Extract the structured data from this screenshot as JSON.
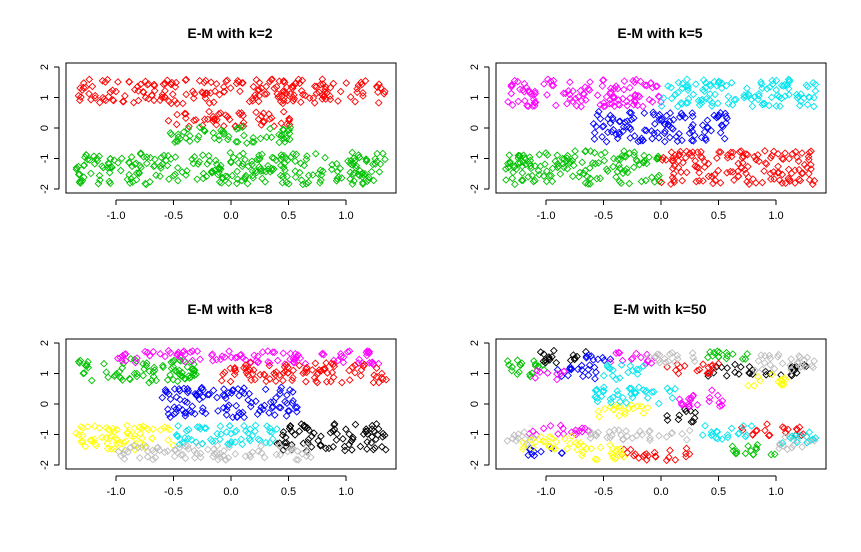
{
  "chart_data": [
    {
      "type": "scatter",
      "title": "E-M with k=2",
      "xlabel": "",
      "ylabel": "",
      "xlim": [
        -1.4,
        1.4
      ],
      "ylim": [
        -2,
        2
      ],
      "xticks": [
        "-1.0",
        "-0.5",
        "0.0",
        "0.5",
        "1.0"
      ],
      "xtick_values": [
        -1.0,
        -0.5,
        0.0,
        0.5,
        1.0
      ],
      "yticks": [
        "-2",
        "-1",
        "0",
        "1",
        "2"
      ],
      "ytick_values": [
        -2,
        -1,
        0,
        1,
        2
      ],
      "marker": "open-diamond",
      "clusters": [
        {
          "color": "#ff0000",
          "regions": [
            {
              "x": [
                -1.35,
                1.35
              ],
              "y": [
                0.8,
                1.6
              ]
            },
            {
              "x": [
                -0.55,
                0.55
              ],
              "y": [
                0.05,
                0.55
              ]
            }
          ]
        },
        {
          "color": "#00c000",
          "regions": [
            {
              "x": [
                -1.35,
                1.35
              ],
              "y": [
                -1.85,
                -0.8
              ]
            },
            {
              "x": [
                -0.55,
                0.55
              ],
              "y": [
                -0.5,
                0.05
              ]
            }
          ]
        }
      ]
    },
    {
      "type": "scatter",
      "title": "E-M with k=5",
      "xlabel": "",
      "ylabel": "",
      "xlim": [
        -1.4,
        1.4
      ],
      "ylim": [
        -2,
        2
      ],
      "xticks": [
        "-1.0",
        "-0.5",
        "0.0",
        "0.5",
        "1.0"
      ],
      "xtick_values": [
        -1.0,
        -0.5,
        0.0,
        0.5,
        1.0
      ],
      "yticks": [
        "-2",
        "-1",
        "0",
        "1",
        "2"
      ],
      "ytick_values": [
        -2,
        -1,
        0,
        1,
        2
      ],
      "marker": "open-diamond",
      "clusters": [
        {
          "color": "#ff00ff",
          "regions": [
            {
              "x": [
                -1.35,
                0.0
              ],
              "y": [
                0.7,
                1.6
              ]
            }
          ]
        },
        {
          "color": "#00e5ee",
          "regions": [
            {
              "x": [
                0.0,
                1.35
              ],
              "y": [
                0.7,
                1.6
              ]
            }
          ]
        },
        {
          "color": "#0000ff",
          "regions": [
            {
              "x": [
                -0.6,
                0.6
              ],
              "y": [
                -0.45,
                0.55
              ]
            }
          ]
        },
        {
          "color": "#00c000",
          "regions": [
            {
              "x": [
                -1.35,
                0.0
              ],
              "y": [
                -1.85,
                -0.75
              ]
            }
          ]
        },
        {
          "color": "#ff0000",
          "regions": [
            {
              "x": [
                0.0,
                1.35
              ],
              "y": [
                -1.85,
                -0.75
              ]
            }
          ]
        }
      ]
    },
    {
      "type": "scatter",
      "title": "E-M with k=8",
      "xlabel": "",
      "ylabel": "",
      "xlim": [
        -1.4,
        1.4
      ],
      "ylim": [
        -2,
        2
      ],
      "xticks": [
        "-1.0",
        "-0.5",
        "0.0",
        "0.5",
        "1.0"
      ],
      "xtick_values": [
        -1.0,
        -0.5,
        0.0,
        0.5,
        1.0
      ],
      "yticks": [
        "-2",
        "-1",
        "0",
        "1",
        "2"
      ],
      "ytick_values": [
        -2,
        -1,
        0,
        1,
        2
      ],
      "marker": "open-diamond",
      "clusters": [
        {
          "color": "#00c000",
          "regions": [
            {
              "x": [
                -1.35,
                -0.3
              ],
              "y": [
                0.7,
                1.5
              ]
            }
          ]
        },
        {
          "color": "#ff00ff",
          "regions": [
            {
              "x": [
                -1.0,
                1.3
              ],
              "y": [
                1.3,
                1.75
              ]
            }
          ]
        },
        {
          "color": "#ff0000",
          "regions": [
            {
              "x": [
                -0.1,
                1.35
              ],
              "y": [
                0.7,
                1.35
              ]
            }
          ]
        },
        {
          "color": "#0000ff",
          "regions": [
            {
              "x": [
                -0.6,
                0.6
              ],
              "y": [
                -0.45,
                0.55
              ]
            }
          ]
        },
        {
          "color": "#ffff00",
          "regions": [
            {
              "x": [
                -1.35,
                -0.5
              ],
              "y": [
                -1.5,
                -0.7
              ]
            }
          ]
        },
        {
          "color": "#00e5ee",
          "regions": [
            {
              "x": [
                -0.55,
                0.4
              ],
              "y": [
                -1.35,
                -0.7
              ]
            }
          ]
        },
        {
          "color": "#000000",
          "regions": [
            {
              "x": [
                0.4,
                1.35
              ],
              "y": [
                -1.55,
                -0.65
              ]
            }
          ]
        },
        {
          "color": "#bebebe",
          "regions": [
            {
              "x": [
                -1.0,
                0.7
              ],
              "y": [
                -1.85,
                -1.35
              ]
            }
          ]
        }
      ]
    },
    {
      "type": "scatter",
      "title": "E-M with k=50",
      "xlabel": "",
      "ylabel": "",
      "xlim": [
        -1.4,
        1.4
      ],
      "ylim": [
        -2,
        2
      ],
      "xticks": [
        "-1.0",
        "-0.5",
        "0.0",
        "0.5",
        "1.0"
      ],
      "xtick_values": [
        -1.0,
        -0.5,
        0.0,
        0.5,
        1.0
      ],
      "yticks": [
        "-2",
        "-1",
        "0",
        "1",
        "2"
      ],
      "ytick_values": [
        -2,
        -1,
        0,
        1,
        2
      ],
      "marker": "open-diamond",
      "clusters": [
        {
          "color": "#00c000",
          "regions": [
            {
              "x": [
                -1.35,
                -1.0
              ],
              "y": [
                0.9,
                1.5
              ]
            },
            {
              "x": [
                0.4,
                0.85
              ],
              "y": [
                1.4,
                1.75
              ]
            },
            {
              "x": [
                0.6,
                1.0
              ],
              "y": [
                -1.7,
                -1.3
              ]
            }
          ]
        },
        {
          "color": "#000000",
          "regions": [
            {
              "x": [
                -1.05,
                -0.6
              ],
              "y": [
                1.35,
                1.75
              ]
            },
            {
              "x": [
                0.4,
                0.8
              ],
              "y": [
                0.9,
                1.3
              ]
            },
            {
              "x": [
                0.05,
                0.3
              ],
              "y": [
                -0.6,
                -0.15
              ]
            },
            {
              "x": [
                0.9,
                1.3
              ],
              "y": [
                0.9,
                1.3
              ]
            }
          ]
        },
        {
          "color": "#0000ff",
          "regions": [
            {
              "x": [
                -0.9,
                -0.55
              ],
              "y": [
                0.8,
                1.3
              ]
            },
            {
              "x": [
                -0.65,
                -0.4
              ],
              "y": [
                1.3,
                1.7
              ]
            },
            {
              "x": [
                -1.2,
                -0.85
              ],
              "y": [
                -1.7,
                -1.4
              ]
            }
          ]
        },
        {
          "color": "#ff00ff",
          "regions": [
            {
              "x": [
                -1.1,
                -0.8
              ],
              "y": [
                0.8,
                1.1
              ]
            },
            {
              "x": [
                -0.45,
                -0.05
              ],
              "y": [
                1.3,
                1.7
              ]
            },
            {
              "x": [
                0.15,
                0.55
              ],
              "y": [
                -0.1,
                0.45
              ]
            },
            {
              "x": [
                -1.15,
                -0.6
              ],
              "y": [
                -1.05,
                -0.7
              ]
            }
          ]
        },
        {
          "color": "#ff0000",
          "regions": [
            {
              "x": [
                0.05,
                0.5
              ],
              "y": [
                0.95,
                1.35
              ]
            },
            {
              "x": [
                0.7,
                1.25
              ],
              "y": [
                -1.05,
                -0.65
              ]
            },
            {
              "x": [
                -0.35,
                0.25
              ],
              "y": [
                -1.85,
                -1.45
              ]
            }
          ]
        },
        {
          "color": "#bebebe",
          "regions": [
            {
              "x": [
                -0.1,
                0.35
              ],
              "y": [
                1.35,
                1.75
              ]
            },
            {
              "x": [
                0.8,
                1.35
              ],
              "y": [
                1.1,
                1.65
              ]
            },
            {
              "x": [
                -0.65,
                0.35
              ],
              "y": [
                -1.2,
                -0.85
              ]
            },
            {
              "x": [
                1.0,
                1.35
              ],
              "y": [
                -1.5,
                -1.0
              ]
            },
            {
              "x": [
                -1.35,
                -1.1
              ],
              "y": [
                -1.4,
                -0.9
              ]
            }
          ]
        },
        {
          "color": "#ffff00",
          "regions": [
            {
              "x": [
                -0.55,
                -0.1
              ],
              "y": [
                -0.45,
                0.0
              ]
            },
            {
              "x": [
                -1.25,
                -0.7
              ],
              "y": [
                -1.5,
                -1.05
              ]
            },
            {
              "x": [
                -0.7,
                -0.3
              ],
              "y": [
                -1.85,
                -1.3
              ]
            },
            {
              "x": [
                0.75,
                1.1
              ],
              "y": [
                0.6,
                1.0
              ]
            }
          ]
        },
        {
          "color": "#00e5ee",
          "regions": [
            {
              "x": [
                -0.6,
                0.15
              ],
              "y": [
                0.0,
                0.55
              ]
            },
            {
              "x": [
                -0.5,
                -0.15
              ],
              "y": [
                0.8,
                1.3
              ]
            },
            {
              "x": [
                0.35,
                0.8
              ],
              "y": [
                -1.15,
                -0.7
              ]
            },
            {
              "x": [
                1.05,
                1.35
              ],
              "y": [
                -1.3,
                -0.9
              ]
            }
          ]
        }
      ]
    }
  ]
}
